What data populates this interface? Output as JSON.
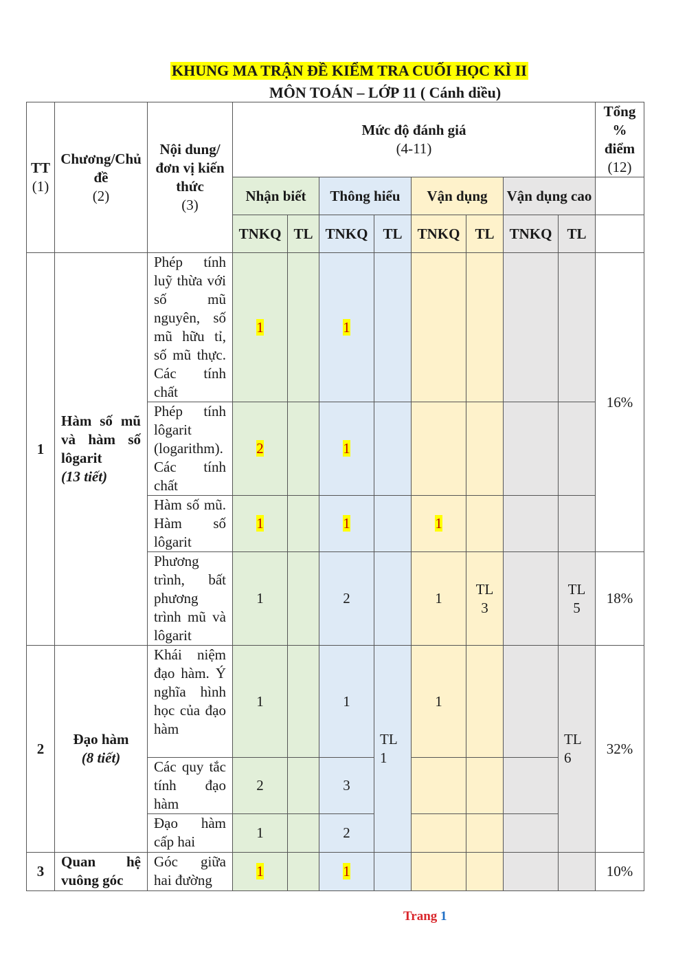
{
  "title": "KHUNG MA TRẬN ĐỀ KIỂM TRA CUỐI HỌC KÌ II",
  "subtitle": "MÔN TOÁN – LỚP 11 ( Cánh diều)",
  "header": {
    "tt": "TT",
    "tt_num": "(1)",
    "chapter": "Chương/Chủ đề",
    "chapter_num": "(2)",
    "content": "Nội dung/đơn vị kiến thức",
    "content_num": "(3)",
    "levels": "Mức độ đánh giá",
    "levels_num": "(4-11)",
    "total": "Tổng % điểm",
    "total_num": "(12)",
    "nhan_biet": "Nhận biết",
    "thong_hieu": "Thông hiểu",
    "van_dung": "Vận dụng",
    "van_dung_cao": "Vận dụng cao",
    "tnkq": "TNKQ",
    "tl": "TL"
  },
  "rows": {
    "r1": {
      "content": "Phép tính luỹ thừa với số mũ nguyên, số mũ hữu tỉ, số mũ thực. Các tính chất",
      "nb": "1",
      "th": "1"
    },
    "r2": {
      "content": "Phép tính lôgarit (logarithm). Các tính chất",
      "nb": "2",
      "th": "1"
    },
    "r3": {
      "content": "Hàm số mũ. Hàm số lôgarit",
      "nb": "1",
      "th": "1",
      "vd": "1"
    },
    "r4": {
      "content": "Phương trình, bất phương trình mũ và lôgarit",
      "nb": "1",
      "th": "2",
      "vd": "1",
      "vd_tl": "TL 3",
      "vdc_tl": "TL 5",
      "total": "18%"
    },
    "r5": {
      "content": "Khái niệm đạo hàm. Ý nghĩa hình học của đạo hàm",
      "nb": "1",
      "th": "1",
      "vd": "1"
    },
    "r6": {
      "content": "Các quy tắc tính đạo hàm",
      "nb": "2",
      "th": "3"
    },
    "r7": {
      "content": "Đạo hàm cấp hai",
      "nb": "1",
      "th": "2"
    },
    "r8": {
      "content": "Góc giữa hai đường",
      "nb": "1",
      "th": "1",
      "total": "10%"
    }
  },
  "groups": {
    "g1": {
      "tt": "1",
      "chapter": "Hàm số mũ và hàm số lôgarit",
      "periods": "(13 tiết)",
      "total": "16%"
    },
    "g2": {
      "tt": "2",
      "chapter": "Đạo hàm",
      "periods": "(8 tiết)",
      "th_tl": "TL 1",
      "vdc_tl": "TL 6",
      "total": "32%"
    },
    "g3": {
      "tt": "3",
      "chapter": "Quan hệ vuông góc"
    }
  },
  "footer": {
    "page_word": "Trang",
    "page_number": "1"
  }
}
